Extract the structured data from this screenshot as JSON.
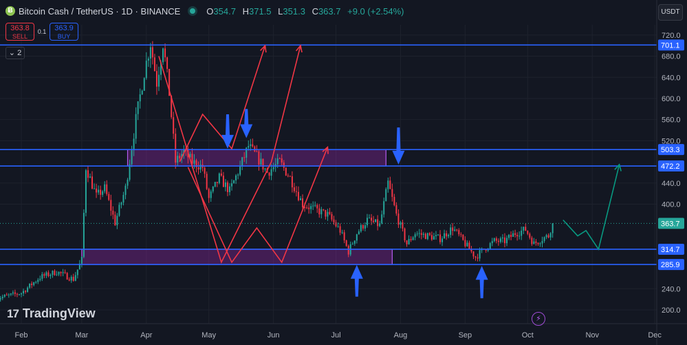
{
  "header": {
    "logo_glyph": "Ƀ",
    "title": "Bitcoin Cash / TetherUS · 1D · BINANCE",
    "ohlc": [
      {
        "k": "O",
        "v": "354.7"
      },
      {
        "k": "H",
        "v": "371.5"
      },
      {
        "k": "L",
        "v": "351.3"
      },
      {
        "k": "C",
        "v": "363.7"
      },
      {
        "k": "",
        "v": "+9.0 (+2.54%)"
      }
    ]
  },
  "trade": {
    "sell_price": "363.8",
    "sell_label": "SELL",
    "spread": "0.1",
    "buy_price": "363.9",
    "buy_label": "BUY"
  },
  "indicator_count": "2",
  "currency": "USDT",
  "branding": {
    "mark": "17",
    "name": "TradingView"
  },
  "colors": {
    "up": "#26a69a",
    "down": "#f23645",
    "level": "#2962ff",
    "zone": "#9c27b0",
    "drawing": "#f23645",
    "projection": "#089981",
    "arrow": "#2962ff"
  },
  "chart_data": {
    "type": "candlestick",
    "symbol": "BCHUSDT",
    "interval": "1D",
    "x_labels": [
      "Feb",
      "Mar",
      "Apr",
      "May",
      "Jun",
      "Jul",
      "Aug",
      "Sep",
      "Oct",
      "Nov",
      "Dec"
    ],
    "y_axis": {
      "min": 185,
      "max": 730,
      "ticks": [
        200.0,
        240.0,
        285.9,
        314.7,
        363.7,
        400.0,
        440.0,
        472.2,
        503.3,
        520.0,
        560.0,
        600.0,
        640.0,
        680.0,
        701.1,
        720.0
      ]
    },
    "y_tick_labels": [
      "200.0",
      "240.0",
      "400.0",
      "440.0",
      "520.0",
      "560.0",
      "600.0",
      "640.0",
      "680.0",
      "720.0"
    ],
    "levels": [
      {
        "value": 701.1,
        "label": "701.1"
      },
      {
        "value": 503.3,
        "label": "503.3"
      },
      {
        "value": 472.2,
        "label": "472.2"
      },
      {
        "value": 314.7,
        "label": "314.7"
      },
      {
        "value": 285.9,
        "label": "285.9"
      }
    ],
    "last_price": {
      "value": 363.7,
      "label": "363.7"
    },
    "zones": [
      {
        "from_date": "2024-03-23",
        "to_date": "2024-07-25",
        "low": 472.2,
        "high": 503.3
      },
      {
        "from_date": "2024-03-01",
        "to_date": "2024-07-28",
        "low": 285.9,
        "high": 314.7
      }
    ],
    "price_path": [
      [
        "2024-01-20",
        222
      ],
      [
        "2024-02-01",
        232
      ],
      [
        "2024-02-10",
        262
      ],
      [
        "2024-02-18",
        272
      ],
      [
        "2024-02-26",
        258
      ],
      [
        "2024-03-01",
        295
      ],
      [
        "2024-03-03",
        470
      ],
      [
        "2024-03-08",
        415
      ],
      [
        "2024-03-12",
        430
      ],
      [
        "2024-03-17",
        365
      ],
      [
        "2024-03-22",
        430
      ],
      [
        "2024-03-27",
        560
      ],
      [
        "2024-03-31",
        650
      ],
      [
        "2024-04-03",
        705
      ],
      [
        "2024-04-06",
        630
      ],
      [
        "2024-04-09",
        705
      ],
      [
        "2024-04-12",
        610
      ],
      [
        "2024-04-15",
        480
      ],
      [
        "2024-04-19",
        500
      ],
      [
        "2024-04-23",
        480
      ],
      [
        "2024-04-28",
        470
      ],
      [
        "2024-05-01",
        410
      ],
      [
        "2024-05-06",
        450
      ],
      [
        "2024-05-11",
        425
      ],
      [
        "2024-05-16",
        470
      ],
      [
        "2024-05-20",
        510
      ],
      [
        "2024-05-24",
        490
      ],
      [
        "2024-05-29",
        460
      ],
      [
        "2024-06-04",
        480
      ],
      [
        "2024-06-09",
        450
      ],
      [
        "2024-06-15",
        400
      ],
      [
        "2024-06-21",
        390
      ],
      [
        "2024-06-27",
        380
      ],
      [
        "2024-07-03",
        350
      ],
      [
        "2024-07-07",
        310
      ],
      [
        "2024-07-11",
        345
      ],
      [
        "2024-07-16",
        370
      ],
      [
        "2024-07-22",
        360
      ],
      [
        "2024-07-26",
        440
      ],
      [
        "2024-07-30",
        380
      ],
      [
        "2024-08-04",
        325
      ],
      [
        "2024-08-08",
        345
      ],
      [
        "2024-08-14",
        340
      ],
      [
        "2024-08-20",
        335
      ],
      [
        "2024-08-26",
        355
      ],
      [
        "2024-09-01",
        325
      ],
      [
        "2024-09-06",
        300
      ],
      [
        "2024-09-10",
        315
      ],
      [
        "2024-09-15",
        330
      ],
      [
        "2024-09-20",
        330
      ],
      [
        "2024-09-25",
        345
      ],
      [
        "2024-09-30",
        352
      ],
      [
        "2024-10-04",
        325
      ],
      [
        "2024-10-08",
        335
      ],
      [
        "2024-10-11",
        340
      ],
      [
        "2024-10-13",
        366
      ]
    ],
    "annotations": {
      "red_zigzags": [
        [
          [
            "2024-04-07",
            680
          ],
          [
            "2024-05-07",
            290
          ],
          [
            "2024-05-31",
            480
          ],
          [
            "2024-06-14",
            700
          ]
        ],
        [
          [
            "2024-04-17",
            480
          ],
          [
            "2024-04-28",
            570
          ],
          [
            "2024-05-12",
            505
          ],
          [
            "2024-05-28",
            700
          ]
        ],
        [
          [
            "2024-04-21",
            470
          ],
          [
            "2024-05-12",
            290
          ],
          [
            "2024-05-24",
            355
          ],
          [
            "2024-06-05",
            290
          ],
          [
            "2024-06-27",
            508
          ]
        ]
      ],
      "blue_arrows": [
        {
          "date": "2024-05-10",
          "from": 570,
          "to": 505,
          "direction": "down"
        },
        {
          "date": "2024-05-19",
          "from": 580,
          "to": 525,
          "direction": "down"
        },
        {
          "date": "2024-07-31",
          "from": 545,
          "to": 475,
          "direction": "down"
        },
        {
          "date": "2024-07-11",
          "from": 225,
          "to": 285,
          "direction": "up"
        },
        {
          "date": "2024-09-09",
          "from": 222,
          "to": 283,
          "direction": "up"
        }
      ],
      "projection": [
        [
          "2024-10-18",
          370
        ],
        [
          "2024-10-25",
          340
        ],
        [
          "2024-10-29",
          350
        ],
        [
          "2024-11-04",
          314.7
        ],
        [
          "2024-11-14",
          475
        ]
      ]
    }
  }
}
